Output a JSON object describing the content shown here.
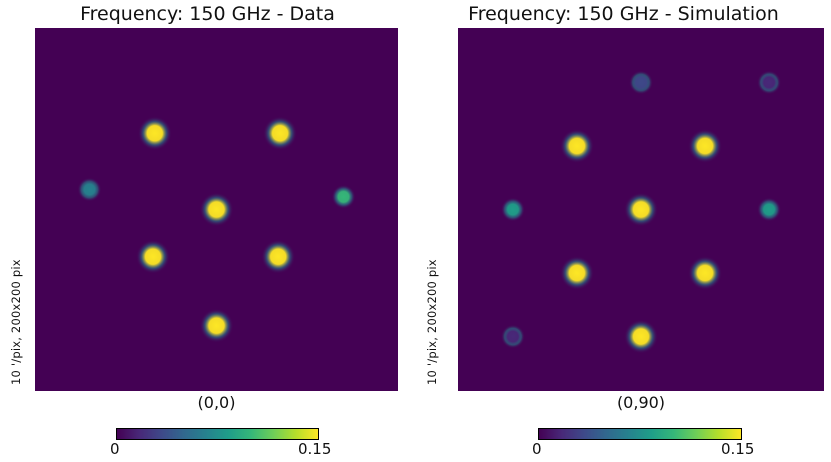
{
  "chart_data": [
    {
      "type": "heatmap",
      "title": "Frequency: 150 GHz - Data",
      "side_label": "10 '/pix,   200x200 pix",
      "coord_label": "(0,0)",
      "colormap": "viridis",
      "colorbar": {
        "min_label": "0",
        "max_label": "0.15",
        "range": [
          0,
          0.15
        ]
      },
      "peaks": [
        {
          "x": 0.0,
          "y": 0.0,
          "v": 0.15
        },
        {
          "x": -0.34,
          "y": 0.42,
          "v": 0.15
        },
        {
          "x": 0.35,
          "y": 0.42,
          "v": 0.15
        },
        {
          "x": -0.35,
          "y": -0.26,
          "v": 0.15
        },
        {
          "x": 0.34,
          "y": -0.26,
          "v": 0.15
        },
        {
          "x": 0.0,
          "y": -0.64,
          "v": 0.15
        },
        {
          "x": -0.7,
          "y": 0.11,
          "v": 0.07
        },
        {
          "x": 0.7,
          "y": 0.07,
          "v": 0.1
        }
      ]
    },
    {
      "type": "heatmap",
      "title": "Frequency: 150 GHz - Simulation",
      "side_label": "10 '/pix,   200x200 pix",
      "coord_label": "(0,90)",
      "colormap": "viridis",
      "colorbar": {
        "min_label": "0",
        "max_label": "0.15",
        "range": [
          0,
          0.15
        ]
      },
      "peaks": [
        {
          "x": 0.0,
          "y": 0.0,
          "v": 0.15
        },
        {
          "x": -0.35,
          "y": 0.35,
          "v": 0.15
        },
        {
          "x": 0.35,
          "y": 0.35,
          "v": 0.15
        },
        {
          "x": -0.35,
          "y": -0.35,
          "v": 0.15
        },
        {
          "x": 0.35,
          "y": -0.35,
          "v": 0.15
        },
        {
          "x": 0.0,
          "y": -0.7,
          "v": 0.15
        },
        {
          "x": -0.7,
          "y": 0.0,
          "v": 0.08
        },
        {
          "x": 0.7,
          "y": 0.0,
          "v": 0.08
        },
        {
          "x": 0.0,
          "y": 0.7,
          "v": 0.04
        },
        {
          "x": -0.7,
          "y": -0.7,
          "v": 0.02
        },
        {
          "x": 0.7,
          "y": 0.7,
          "v": 0.02
        }
      ]
    }
  ]
}
